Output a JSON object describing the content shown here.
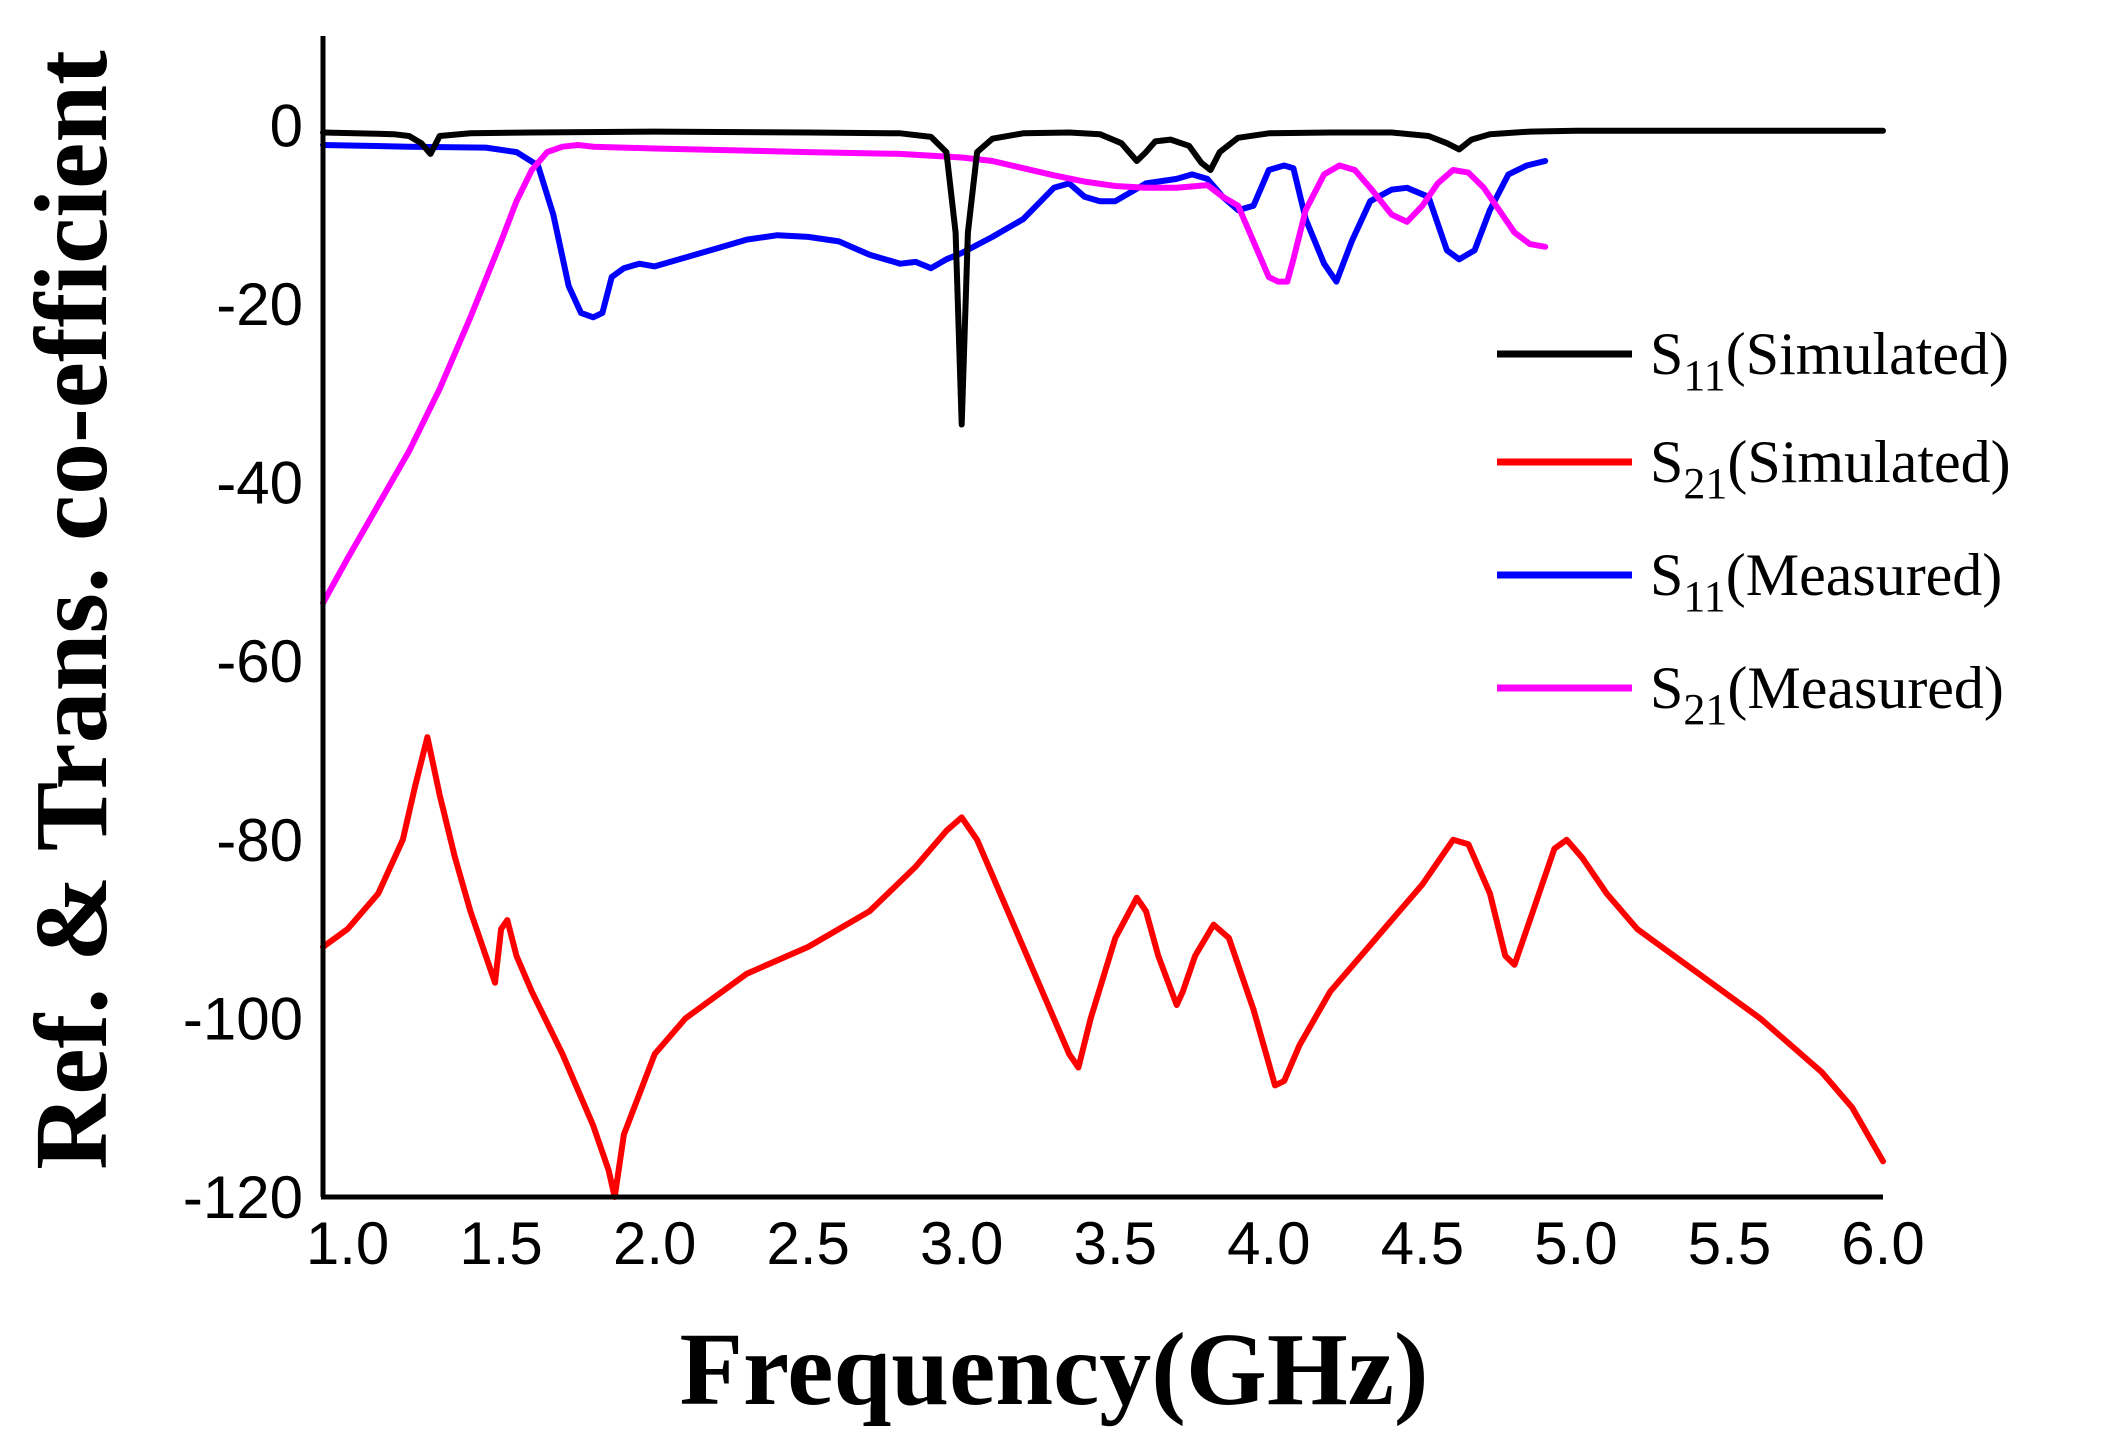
{
  "chart_data": {
    "type": "line",
    "title": "",
    "xlabel": "Frequency(GHz)",
    "ylabel": "Ref. & Trans. co-efficient",
    "xlim": [
      0.92,
      6.0
    ],
    "ylim": [
      -120,
      10
    ],
    "xticks": [
      1.0,
      1.5,
      2.0,
      2.5,
      3.0,
      3.5,
      4.0,
      4.5,
      5.0,
      5.5,
      6.0
    ],
    "xtick_labels": [
      "1.0",
      "1.5",
      "2.0",
      "2.5",
      "3.0",
      "3.5",
      "4.0",
      "4.5",
      "5.0",
      "5.5",
      "6.0"
    ],
    "yticks": [
      0,
      -20,
      -40,
      -60,
      -80,
      -100,
      -120
    ],
    "ytick_labels": [
      "0",
      "-20",
      "-40",
      "-60",
      "-80",
      "-100",
      "-120"
    ],
    "legend_position": "right",
    "series": [
      {
        "name": "S11(Simulated)",
        "legend_main": "S",
        "legend_sub": "11",
        "legend_rest": "(Simulated)",
        "color": "#000000",
        "x": [
          0.92,
          1.15,
          1.2,
          1.24,
          1.27,
          1.3,
          1.4,
          1.6,
          2.0,
          2.5,
          2.8,
          2.9,
          2.95,
          2.98,
          3.0,
          3.02,
          3.05,
          3.1,
          3.2,
          3.35,
          3.45,
          3.52,
          3.57,
          3.6,
          3.63,
          3.68,
          3.74,
          3.78,
          3.81,
          3.84,
          3.9,
          4.0,
          4.2,
          4.4,
          4.52,
          4.58,
          4.62,
          4.66,
          4.72,
          4.85,
          5.0,
          5.5,
          6.0
        ],
        "y": [
          -0.8,
          -1.0,
          -1.2,
          -2.0,
          -3.2,
          -1.2,
          -0.9,
          -0.8,
          -0.7,
          -0.8,
          -0.9,
          -1.3,
          -3.0,
          -12,
          -33.5,
          -12,
          -3.0,
          -1.5,
          -0.9,
          -0.8,
          -1.0,
          -2.0,
          -4.0,
          -3.0,
          -1.8,
          -1.6,
          -2.3,
          -4.2,
          -5.0,
          -3.0,
          -1.4,
          -0.9,
          -0.8,
          -0.8,
          -1.2,
          -2.0,
          -2.7,
          -1.6,
          -1.0,
          -0.7,
          -0.6,
          -0.6,
          -0.6
        ]
      },
      {
        "name": "S21(Simulated)",
        "legend_main": "S",
        "legend_sub": "21",
        "legend_rest": "(Simulated)",
        "color": "#ff0000",
        "x": [
          0.92,
          1.0,
          1.1,
          1.18,
          1.22,
          1.26,
          1.3,
          1.35,
          1.4,
          1.45,
          1.48,
          1.5,
          1.52,
          1.55,
          1.6,
          1.7,
          1.8,
          1.85,
          1.87,
          1.9,
          2.0,
          2.1,
          2.3,
          2.5,
          2.7,
          2.85,
          2.95,
          3.0,
          3.05,
          3.15,
          3.25,
          3.35,
          3.38,
          3.42,
          3.5,
          3.57,
          3.6,
          3.64,
          3.7,
          3.72,
          3.76,
          3.82,
          3.87,
          3.95,
          4.02,
          4.05,
          4.1,
          4.2,
          4.35,
          4.5,
          4.6,
          4.65,
          4.72,
          4.77,
          4.8,
          4.85,
          4.93,
          4.97,
          5.02,
          5.1,
          5.2,
          5.4,
          5.6,
          5.8,
          5.9,
          6.0
        ],
        "y": [
          -92,
          -90,
          -86,
          -80,
          -74,
          -68.5,
          -75,
          -82,
          -88,
          -93,
          -96,
          -90,
          -89,
          -93,
          -97,
          -104,
          -112,
          -117,
          -120,
          -113,
          -104,
          -100,
          -95,
          -92,
          -88,
          -83,
          -79,
          -77.5,
          -80,
          -88,
          -96,
          -104,
          -105.5,
          -100,
          -91,
          -86.5,
          -88,
          -93,
          -98.5,
          -97,
          -93,
          -89.5,
          -91,
          -99,
          -107.5,
          -107,
          -103,
          -97,
          -91,
          -85,
          -80,
          -80.5,
          -86,
          -93,
          -94,
          -89,
          -81,
          -80,
          -82,
          -86,
          -90,
          -95,
          -100,
          -106,
          -110,
          -116
        ]
      },
      {
        "name": "S11(Measured)",
        "legend_main": "S",
        "legend_sub": "11",
        "legend_rest": "(Measured)",
        "color": "#0000ff",
        "x": [
          0.92,
          1.2,
          1.45,
          1.55,
          1.62,
          1.67,
          1.72,
          1.76,
          1.8,
          1.83,
          1.86,
          1.9,
          1.95,
          2.0,
          2.1,
          2.2,
          2.3,
          2.4,
          2.5,
          2.6,
          2.7,
          2.8,
          2.85,
          2.9,
          2.95,
          3.0,
          3.1,
          3.2,
          3.3,
          3.35,
          3.4,
          3.45,
          3.5,
          3.55,
          3.6,
          3.7,
          3.75,
          3.8,
          3.85,
          3.9,
          3.95,
          4.0,
          4.05,
          4.08,
          4.12,
          4.18,
          4.22,
          4.27,
          4.33,
          4.4,
          4.45,
          4.52,
          4.58,
          4.62,
          4.67,
          4.72,
          4.78,
          4.84,
          4.9
        ],
        "y": [
          -2.2,
          -2.4,
          -2.5,
          -3.0,
          -4.5,
          -10,
          -18,
          -21,
          -21.5,
          -21.0,
          -17,
          -16,
          -15.5,
          -15.8,
          -14.8,
          -13.8,
          -12.8,
          -12.3,
          -12.5,
          -13.0,
          -14.5,
          -15.5,
          -15.3,
          -16.0,
          -15.0,
          -14.3,
          -12.5,
          -10.5,
          -7.0,
          -6.5,
          -8.0,
          -8.5,
          -8.5,
          -7.5,
          -6.5,
          -6.0,
          -5.5,
          -6.0,
          -8.0,
          -9.5,
          -9.0,
          -5.0,
          -4.5,
          -4.8,
          -10.5,
          -15.5,
          -17.5,
          -13,
          -8.5,
          -7.2,
          -7.0,
          -8.0,
          -14.0,
          -15.0,
          -14.0,
          -9.5,
          -5.5,
          -4.5,
          -4.0
        ]
      },
      {
        "name": "S21(Measured)",
        "legend_main": "S",
        "legend_sub": "21",
        "legend_rest": "(Measured)",
        "color": "#ff00ff",
        "x": [
          0.92,
          1.0,
          1.1,
          1.2,
          1.3,
          1.4,
          1.5,
          1.55,
          1.6,
          1.65,
          1.7,
          1.75,
          1.8,
          2.0,
          2.5,
          2.8,
          3.0,
          3.1,
          3.2,
          3.3,
          3.4,
          3.5,
          3.6,
          3.7,
          3.8,
          3.85,
          3.9,
          3.95,
          4.0,
          4.03,
          4.06,
          4.08,
          4.12,
          4.18,
          4.23,
          4.28,
          4.33,
          4.4,
          4.45,
          4.5,
          4.55,
          4.6,
          4.65,
          4.7,
          4.75,
          4.8,
          4.85,
          4.9
        ],
        "y": [
          -53.5,
          -48.5,
          -42.5,
          -36.5,
          -29.5,
          -21.5,
          -13.0,
          -8.5,
          -5.0,
          -3.0,
          -2.4,
          -2.2,
          -2.4,
          -2.6,
          -3.0,
          -3.2,
          -3.6,
          -4.0,
          -4.8,
          -5.6,
          -6.3,
          -6.8,
          -7.0,
          -7.0,
          -6.7,
          -8.0,
          -9.0,
          -13.0,
          -17.0,
          -17.5,
          -17.5,
          -15,
          -9.5,
          -5.5,
          -4.5,
          -5.0,
          -7.0,
          -10.0,
          -10.8,
          -9.0,
          -6.5,
          -5.0,
          -5.3,
          -7.0,
          -9.5,
          -12.0,
          -13.3,
          -13.6
        ]
      }
    ]
  }
}
